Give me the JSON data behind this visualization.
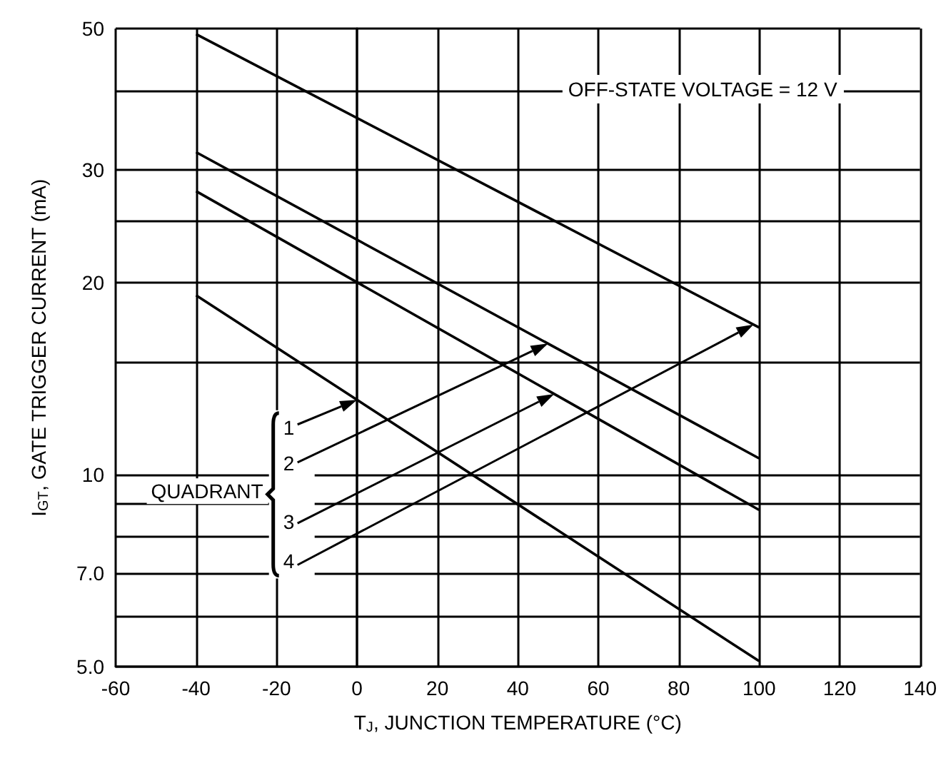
{
  "chart_data": {
    "type": "line",
    "xlabel": "T$_{J}$, JUNCTION TEMPERATURE (°C)",
    "ylabel": "I$_{GT}$, GATE TRIGGER CURRENT (mA)",
    "x": [
      -40,
      100
    ],
    "series": [
      {
        "name": "1",
        "color": "#000000",
        "values": [
          19.1,
          5.1
        ]
      },
      {
        "name": "2",
        "color": "#000000",
        "values": [
          32,
          10.6
        ]
      },
      {
        "name": "3",
        "color": "#000000",
        "values": [
          27.8,
          8.8
        ]
      },
      {
        "name": "4",
        "color": "#000000",
        "values": [
          49,
          17
        ]
      }
    ],
    "xlim": [
      -60,
      140
    ],
    "xticks": [
      -60,
      -40,
      -20,
      0,
      20,
      40,
      60,
      80,
      100,
      120,
      140
    ],
    "ylim": [
      5,
      50
    ],
    "log": "y",
    "yticks": [
      {
        "value": 5,
        "label": "5.0"
      },
      {
        "value": 6,
        "label": null
      },
      {
        "value": 7,
        "label": "7.0"
      },
      {
        "value": 8,
        "label": null
      },
      {
        "value": 9,
        "label": null
      },
      10,
      {
        "value": 15,
        "label": null
      },
      20,
      {
        "value": 25,
        "label": null
      },
      30,
      {
        "value": 40,
        "label": null
      },
      50
    ],
    "grid": true,
    "marker": "none",
    "line_style": "solid",
    "annotations": [
      "OFF-STATE VOLTAGE = 12 V",
      "QUADRANT"
    ]
  }
}
